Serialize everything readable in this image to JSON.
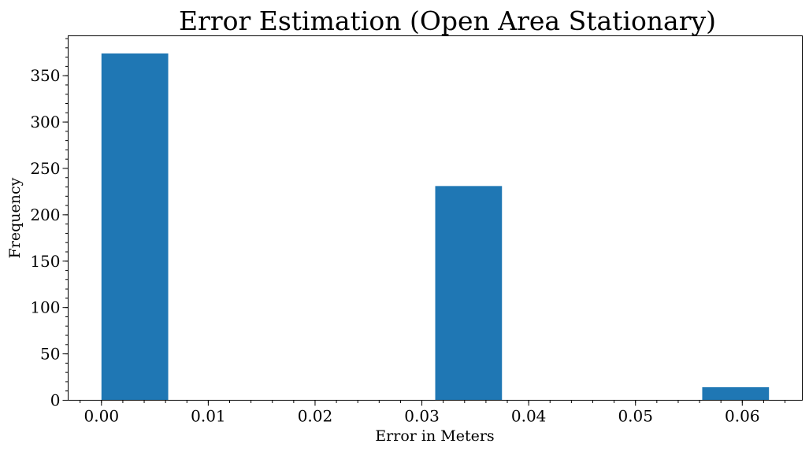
{
  "chart_data": {
    "type": "bar",
    "title": "Error Estimation (Open Area Stationary)",
    "xlabel": "Error in Meters",
    "ylabel": "Frequency",
    "xlim": [
      -0.00312,
      0.06562
    ],
    "ylim": [
      0,
      393
    ],
    "bar_color": "#1f77b4",
    "bin_width": 0.00625,
    "bars": [
      {
        "x0": 0.0,
        "x1": 0.00625,
        "value": 374
      },
      {
        "x0": 0.00625,
        "x1": 0.0125,
        "value": 0
      },
      {
        "x0": 0.0125,
        "x1": 0.01875,
        "value": 0
      },
      {
        "x0": 0.01875,
        "x1": 0.025,
        "value": 0
      },
      {
        "x0": 0.025,
        "x1": 0.03125,
        "value": 0
      },
      {
        "x0": 0.03125,
        "x1": 0.0375,
        "value": 231
      },
      {
        "x0": 0.0375,
        "x1": 0.04375,
        "value": 0
      },
      {
        "x0": 0.04375,
        "x1": 0.05,
        "value": 0
      },
      {
        "x0": 0.05,
        "x1": 0.05625,
        "value": 0
      },
      {
        "x0": 0.05625,
        "x1": 0.0625,
        "value": 14
      }
    ],
    "xticks": [
      {
        "value": 0.0,
        "label": "0.00"
      },
      {
        "value": 0.01,
        "label": "0.01"
      },
      {
        "value": 0.02,
        "label": "0.02"
      },
      {
        "value": 0.03,
        "label": "0.03"
      },
      {
        "value": 0.04,
        "label": "0.04"
      },
      {
        "value": 0.05,
        "label": "0.05"
      },
      {
        "value": 0.06,
        "label": "0.06"
      }
    ],
    "xminor_step": 0.002,
    "yticks": [
      {
        "value": 0,
        "label": "0"
      },
      {
        "value": 50,
        "label": "50"
      },
      {
        "value": 100,
        "label": "100"
      },
      {
        "value": 150,
        "label": "150"
      },
      {
        "value": 200,
        "label": "200"
      },
      {
        "value": 250,
        "label": "250"
      },
      {
        "value": 300,
        "label": "300"
      },
      {
        "value": 350,
        "label": "350"
      }
    ],
    "yminor_step": 10,
    "grid": false,
    "legend": "none"
  }
}
